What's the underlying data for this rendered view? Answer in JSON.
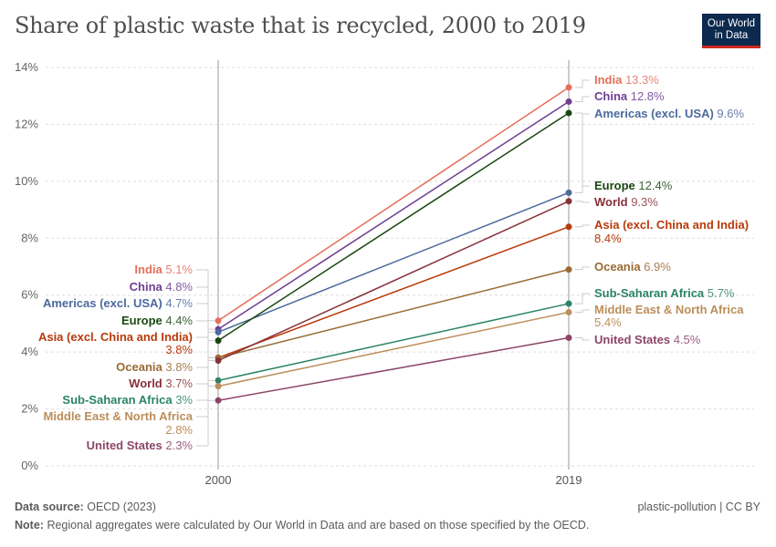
{
  "title": "Share of plastic waste that is recycled, 2000 to 2019",
  "logo": {
    "line1": "Our World",
    "line2": "in Data"
  },
  "footer": {
    "source_label": "Data source:",
    "source": "OECD (2023)",
    "license": "plastic-pollution | CC BY",
    "note_label": "Note:",
    "note": "Regional aggregates were calculated by Our World in Data and are based on those specified by the OECD."
  },
  "chart_data": {
    "type": "slope",
    "title": "Share of plastic waste that is recycled, 2000 to 2019",
    "x": [
      "2000",
      "2019"
    ],
    "ylim": [
      0,
      14
    ],
    "yticks": [
      "0%",
      "2%",
      "4%",
      "6%",
      "8%",
      "10%",
      "12%",
      "14%"
    ],
    "grid": true,
    "unit": "%",
    "series": [
      {
        "name": "India",
        "values": [
          5.1,
          13.3
        ],
        "labels": [
          "5.1%",
          "13.3%"
        ],
        "color": "#e56e5a"
      },
      {
        "name": "China",
        "values": [
          4.8,
          12.8
        ],
        "labels": [
          "4.8%",
          "12.8%"
        ],
        "color": "#6d3e91"
      },
      {
        "name": "Americas (excl. USA)",
        "values": [
          4.7,
          9.6
        ],
        "labels": [
          "4.7%",
          "9.6%"
        ],
        "color": "#4c6a9c"
      },
      {
        "name": "Europe",
        "values": [
          4.4,
          12.4
        ],
        "labels": [
          "4.4%",
          "12.4%"
        ],
        "color": "#18470f"
      },
      {
        "name": "Asia (excl. China and India)",
        "values": [
          3.8,
          8.4
        ],
        "labels": [
          "3.8%",
          "8.4%"
        ],
        "color": "#b83a0b"
      },
      {
        "name": "Oceania",
        "values": [
          3.8,
          6.9
        ],
        "labels": [
          "3.8%",
          "6.9%"
        ],
        "color": "#9a6a34"
      },
      {
        "name": "World",
        "values": [
          3.7,
          9.3
        ],
        "labels": [
          "3.7%",
          "9.3%"
        ],
        "color": "#883039"
      },
      {
        "name": "Sub-Saharan Africa",
        "values": [
          3.0,
          5.7
        ],
        "labels": [
          "3%",
          "5.7%"
        ],
        "color": "#2c8465"
      },
      {
        "name": "Middle East & North Africa",
        "values": [
          2.8,
          5.4
        ],
        "labels": [
          "2.8%",
          "5.4%"
        ],
        "color": "#bc8e5a"
      },
      {
        "name": "United States",
        "values": [
          2.3,
          4.5
        ],
        "labels": [
          "2.3%",
          "4.5%"
        ],
        "color": "#8c4569"
      }
    ]
  }
}
